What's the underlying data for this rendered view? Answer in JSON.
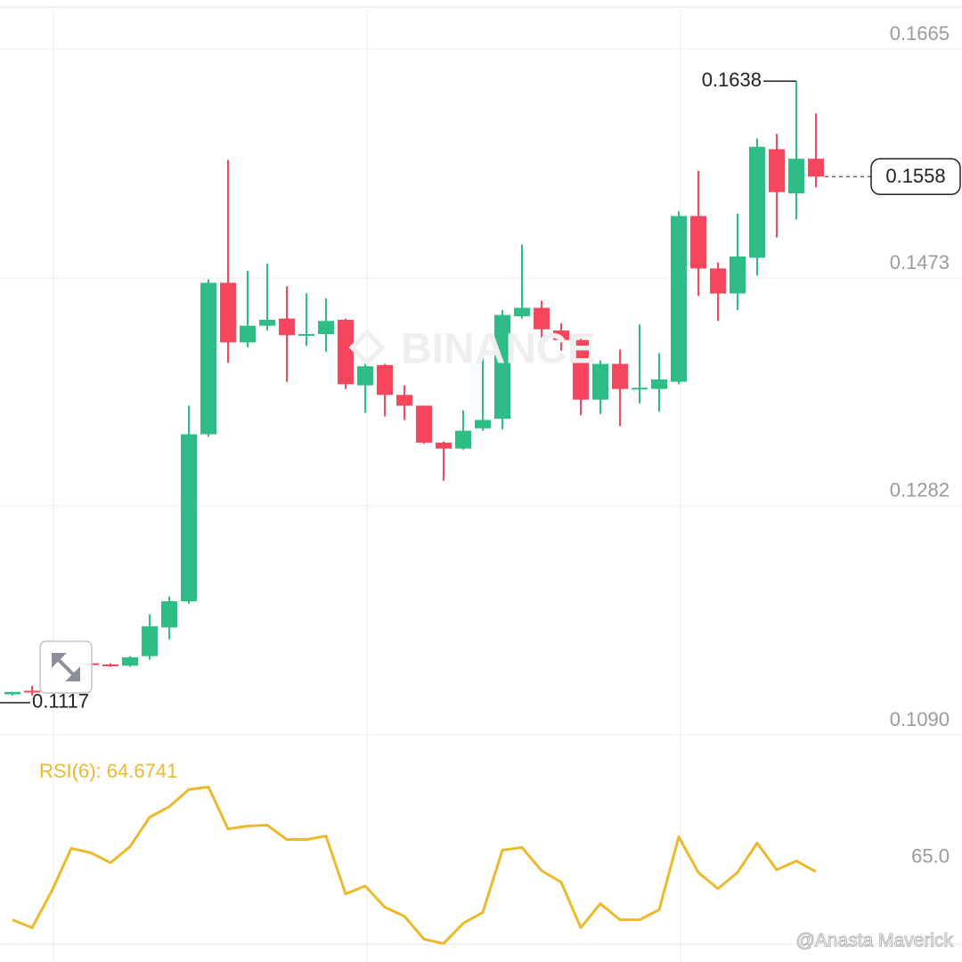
{
  "chart_data": [
    {
      "type": "candlestick",
      "open": [
        0.1124,
        0.1127,
        null,
        null,
        0.115,
        0.1149,
        0.1148,
        0.1156,
        0.118,
        0.1202,
        0.1342,
        0.1469,
        0.1419,
        0.1433,
        0.1439,
        0.1425,
        0.1426,
        0.1438,
        0.1383,
        0.14,
        0.1375,
        0.1366,
        0.1335,
        0.133,
        0.1347,
        0.1355,
        0.1441,
        0.1448,
        0.1429,
        0.1421,
        0.1371,
        0.1401,
        0.138,
        0.138,
        0.1386,
        0.1525,
        0.1481,
        0.146,
        0.149,
        0.1581,
        0.1544,
        0.1573
      ],
      "high": [
        0.1126,
        0.1131,
        null,
        null,
        0.1151,
        0.115,
        0.1156,
        0.1191,
        0.1206,
        0.1366,
        0.1472,
        0.1572,
        0.1479,
        0.1485,
        0.1466,
        0.146,
        0.1456,
        0.1439,
        0.1404,
        0.1401,
        0.1383,
        0.1366,
        0.1336,
        0.1362,
        0.1411,
        0.1446,
        0.1501,
        0.1454,
        0.1435,
        0.1422,
        0.1404,
        0.1413,
        0.1434,
        0.141,
        0.1529,
        0.1563,
        0.1486,
        0.1527,
        0.159,
        0.1594,
        0.1638,
        0.1611
      ],
      "low": [
        0.1123,
        0.1123,
        null,
        null,
        0.1148,
        0.1147,
        0.1147,
        0.1153,
        0.117,
        0.12,
        0.134,
        0.1402,
        0.1415,
        0.1429,
        0.1386,
        0.1416,
        0.1411,
        0.138,
        0.136,
        0.1357,
        0.1354,
        0.1334,
        0.1303,
        0.1329,
        0.1345,
        0.1346,
        0.1439,
        0.1415,
        0.1412,
        0.1358,
        0.1359,
        0.1349,
        0.1368,
        0.1361,
        0.1384,
        0.1458,
        0.1437,
        0.1446,
        0.1475,
        0.1507,
        0.1522,
        0.1549
      ],
      "close": [
        0.1126,
        0.1126,
        null,
        null,
        0.1149,
        0.1148,
        0.1155,
        0.1181,
        0.1202,
        0.1342,
        0.1469,
        0.1419,
        0.1433,
        0.1438,
        0.1425,
        0.1426,
        0.1437,
        0.1384,
        0.1399,
        0.1375,
        0.1366,
        0.1335,
        0.133,
        0.1345,
        0.1354,
        0.1442,
        0.1448,
        0.143,
        0.1421,
        0.1371,
        0.1401,
        0.138,
        0.1381,
        0.1388,
        0.1525,
        0.1481,
        0.146,
        0.1491,
        0.1583,
        0.1545,
        0.1573,
        0.1558
      ],
      "up_color": "#2ebd85",
      "down_color": "#f6465d",
      "ylim": [
        0.109,
        0.1665
      ],
      "yticks": [
        {
          "value": 0.109,
          "label": "0.1090"
        },
        0.1282,
        0.1473,
        0.1665
      ],
      "grid": true,
      "high_label": 0.1638,
      "low_label": 0.1117,
      "last_price": 0.1558,
      "watermark": "BINANCE"
    },
    {
      "type": "line",
      "title": "RSI(6): 64.6741",
      "values": [
        48.3,
        45.6,
        58.0,
        72.6,
        71.1,
        67.7,
        73.2,
        83.2,
        86.8,
        92.6,
        93.5,
        79.2,
        80.2,
        80.5,
        75.6,
        75.6,
        76.8,
        57.1,
        59.8,
        52.6,
        49.5,
        41.7,
        40.2,
        47.1,
        50.8,
        72.0,
        72.9,
        65.0,
        61.1,
        45.6,
        53.8,
        48.3,
        48.3,
        51.7,
        76.5,
        64.4,
        58.9,
        64.4,
        74.4,
        65.3,
        68.3,
        64.6741
      ],
      "color": "#ecb92b",
      "ylim": [
        40,
        100
      ],
      "yticks": [
        {
          "value": 65,
          "label": "65.0"
        }
      ]
    }
  ],
  "credit": "@Anasta Maverick"
}
